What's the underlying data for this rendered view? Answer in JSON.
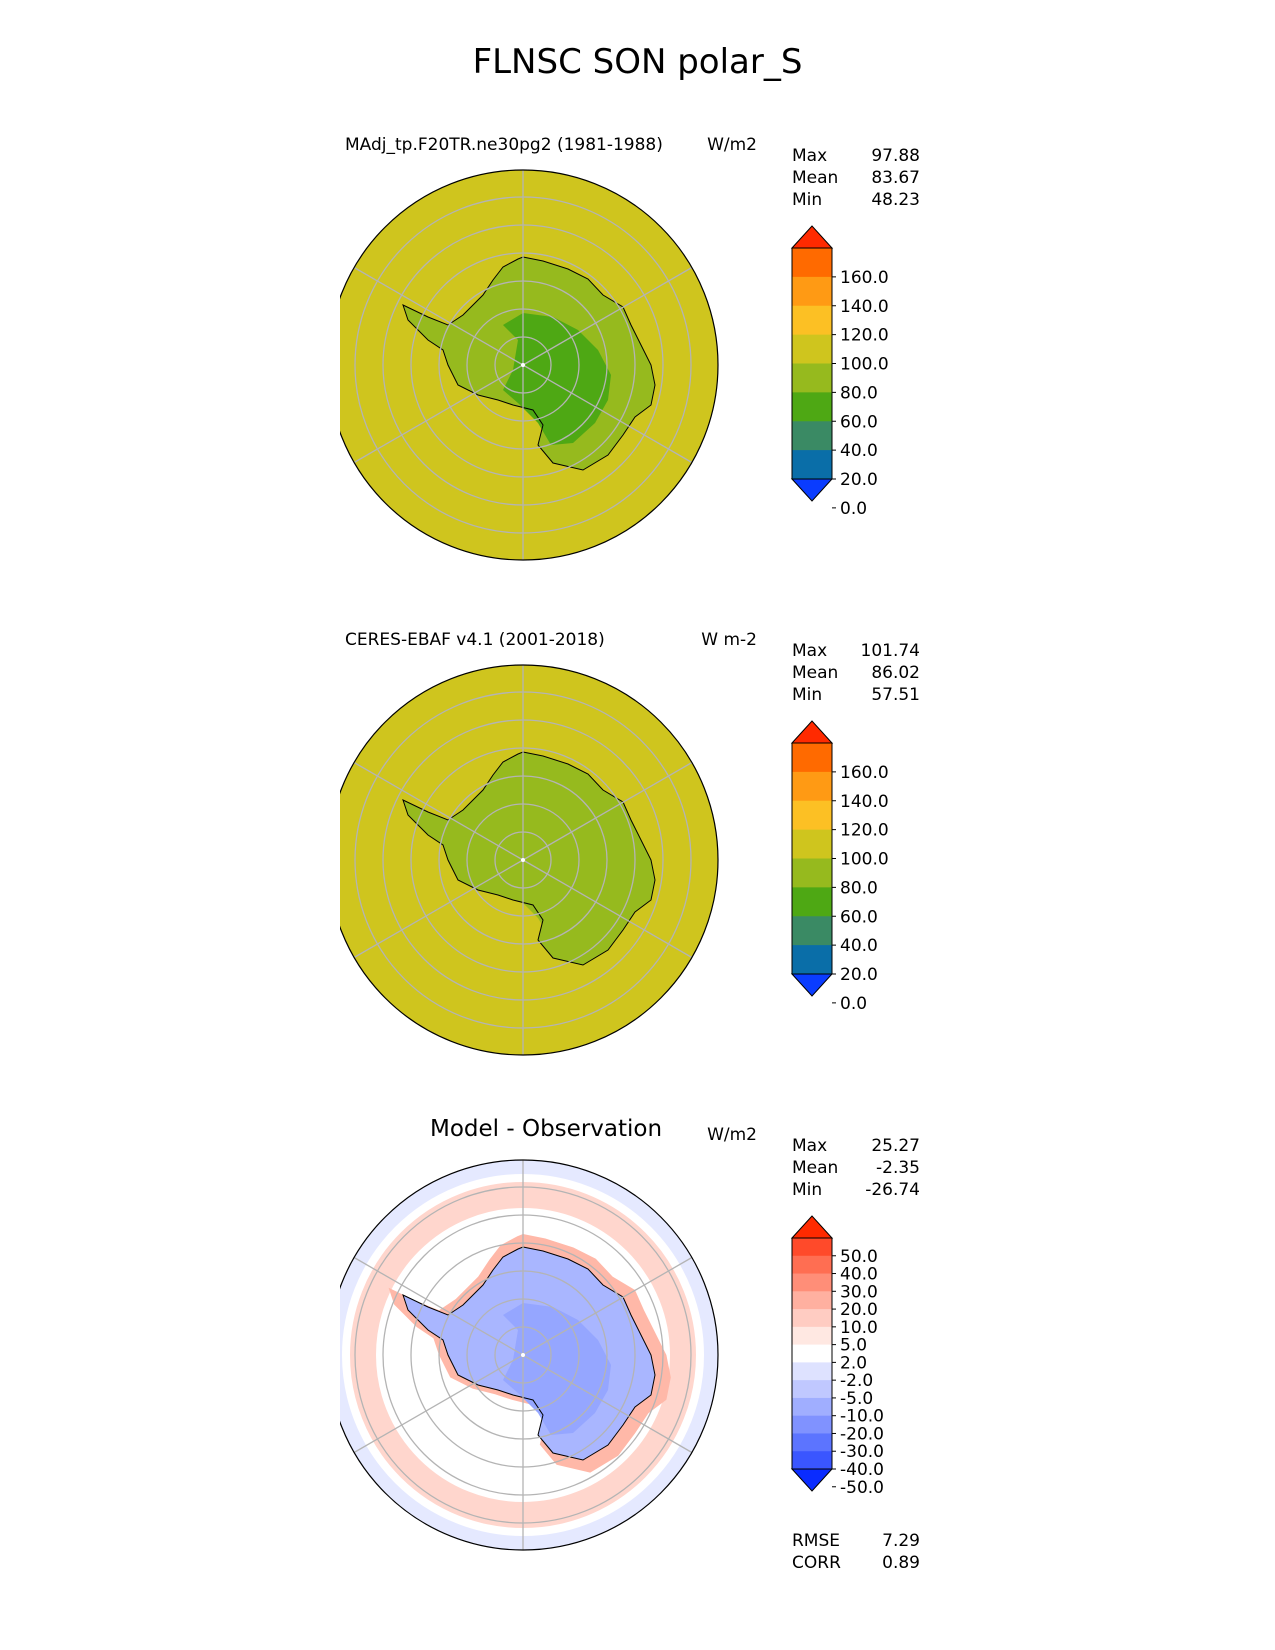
{
  "title": "FLNSC SON polar_S",
  "panels": [
    {
      "id": "test",
      "title": "MAdj_tp.F20TR.ne30pg2 (1981-1988)",
      "units": "W/m2",
      "stats": [
        {
          "label": "Max",
          "value": "97.88"
        },
        {
          "label": "Mean",
          "value": "83.67"
        },
        {
          "label": "Min",
          "value": "48.23"
        }
      ],
      "colorbar": {
        "ticks": [
          "160.0",
          "140.0",
          "120.0",
          "100.0",
          "80.0",
          "60.0",
          "40.0",
          "20.0",
          "0.0"
        ],
        "colors_top_to_bottom": [
          "#ff2a00",
          "#ff6a00",
          "#ff9a14",
          "#fcc024",
          "#cfc51e",
          "#96ba1e",
          "#4ea814",
          "#3a8a64",
          "#0a6ea8",
          "#0a3cff"
        ]
      },
      "field_colors": {
        "ocean": "#cfc51e",
        "land_outer": "#96ba1e",
        "land_inner": "#4ea814"
      }
    },
    {
      "id": "reference",
      "title": "CERES-EBAF v4.1 (2001-2018)",
      "units": "W m-2",
      "stats": [
        {
          "label": "Max",
          "value": "101.74"
        },
        {
          "label": "Mean",
          "value": "86.02"
        },
        {
          "label": "Min",
          "value": "57.51"
        }
      ],
      "colorbar": {
        "ticks": [
          "160.0",
          "140.0",
          "120.0",
          "100.0",
          "80.0",
          "60.0",
          "40.0",
          "20.0",
          "0.0"
        ],
        "colors_top_to_bottom": [
          "#ff2a00",
          "#ff6a00",
          "#ff9a14",
          "#fcc024",
          "#cfc51e",
          "#96ba1e",
          "#4ea814",
          "#3a8a64",
          "#0a6ea8",
          "#0a3cff"
        ]
      },
      "field_colors": {
        "ocean": "#cfc51e",
        "land_outer": "#96ba1e",
        "land_inner": "#96ba1e"
      }
    },
    {
      "id": "diff",
      "title": "Model - Observation",
      "units": "W/m2",
      "stats": [
        {
          "label": "Max",
          "value": "25.27"
        },
        {
          "label": "Mean",
          "value": "-2.35"
        },
        {
          "label": "Min",
          "value": "-26.74"
        }
      ],
      "colorbar": {
        "ticks": [
          "50.0",
          "40.0",
          "30.0",
          "20.0",
          "10.0",
          "5.0",
          "2.0",
          "-2.0",
          "-5.0",
          "-10.0",
          "-20.0",
          "-30.0",
          "-40.0",
          "-50.0"
        ],
        "colors_top_to_bottom": [
          "#ff2a00",
          "#ff4a2a",
          "#ff6e52",
          "#ff8e78",
          "#ffb0a0",
          "#ffccc2",
          "#ffe8e2",
          "#ffffff",
          "#dee2ff",
          "#c0c8ff",
          "#a0aeff",
          "#8092ff",
          "#5c74ff",
          "#3a56ff",
          "#0a2cff"
        ]
      },
      "extra": [
        {
          "label": "RMSE",
          "value": "7.29"
        },
        {
          "label": "CORR",
          "value": "0.89"
        }
      ]
    }
  ],
  "chart_data": {
    "type": "heatmap",
    "projection": "south polar stereographic",
    "title": "FLNSC SON polar_S",
    "panels": [
      "MAdj_tp.F20TR.ne30pg2 (1981-1988)",
      "CERES-EBAF v4.1 (2001-2018)",
      "Model - Observation"
    ]
  }
}
